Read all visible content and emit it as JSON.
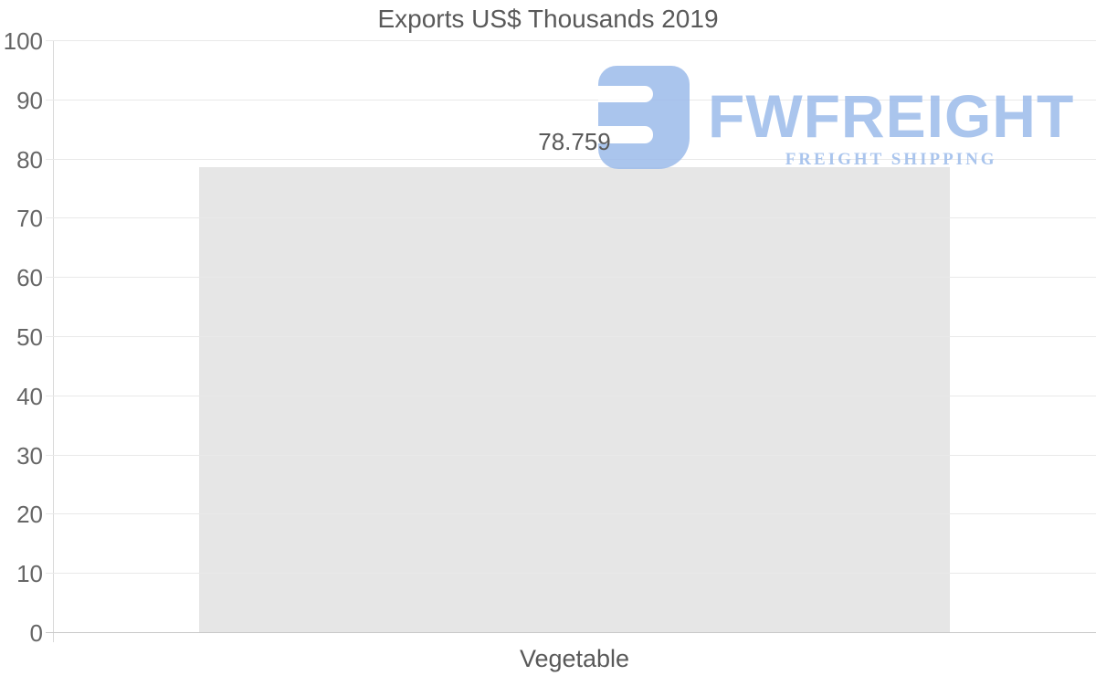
{
  "chart_data": {
    "type": "bar",
    "title": "Exports US$ Thousands 2019",
    "categories": [
      "Vegetable"
    ],
    "values": [
      78.759
    ],
    "value_labels": [
      "78.759"
    ],
    "xlabel": "",
    "ylabel": "",
    "ylim": [
      0,
      100
    ],
    "yticks": [
      0,
      10,
      20,
      30,
      40,
      50,
      60,
      70,
      80,
      90,
      100
    ],
    "grid": true,
    "legend": false,
    "bar_color": "#e6e6e6",
    "grid_color": "#e9e9e9",
    "baseline_color": "#c9c9c9",
    "axis_color": "#d9d9d9",
    "text_color": "#595959"
  },
  "watermark": {
    "brand": "FWFREIGHT",
    "tagline": "FREIGHT SHIPPING",
    "color": "#9cbbeb",
    "logo_icon": "fwfreight-mark-icon"
  }
}
